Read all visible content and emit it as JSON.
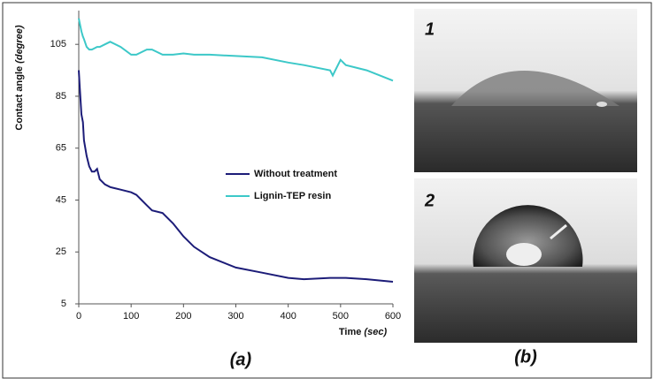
{
  "chart_data": {
    "type": "line",
    "y_label": "Contact angle",
    "y_label_unit": "(degree)",
    "x_label": "Time",
    "x_label_unit": "(sec)",
    "x": [
      0,
      2,
      5,
      8,
      10,
      15,
      20,
      25,
      30,
      35,
      40,
      50,
      60,
      80,
      100,
      110,
      120,
      130,
      140,
      160,
      180,
      200,
      220,
      250,
      300,
      350,
      400,
      430,
      480,
      485,
      490,
      500,
      510,
      550,
      600
    ],
    "series": [
      {
        "name": "Without treatment",
        "color": "#1c1c78",
        "values": [
          95,
          88,
          78,
          75,
          68,
          62,
          58,
          56,
          56,
          57,
          53,
          51,
          50,
          49,
          48,
          47,
          45,
          43,
          41,
          40,
          36,
          31,
          27,
          23,
          19,
          17,
          15,
          14.5,
          15,
          15,
          15,
          15,
          15,
          14.5,
          13.5
        ]
      },
      {
        "name": "Lignin-TEP resin",
        "color": "#3cc8c8",
        "values": [
          115,
          113,
          110,
          108,
          107,
          104,
          103,
          103,
          103.5,
          104,
          104,
          105,
          106,
          104,
          101,
          101,
          102,
          103,
          103,
          101,
          101,
          101.5,
          101,
          101,
          100.5,
          100,
          98,
          97,
          95,
          93,
          95,
          99,
          97,
          95,
          91
        ]
      }
    ],
    "xlim": [
      0,
      600
    ],
    "xticks": [
      0,
      100,
      200,
      300,
      400,
      500,
      600
    ],
    "ylim": [
      5,
      118
    ],
    "yticks": [
      5,
      25,
      45,
      65,
      85,
      105
    ],
    "legend": "center-right",
    "caption_a": "(a)",
    "caption_b": "(b)",
    "photo_1_label": "1",
    "photo_2_label": "2"
  }
}
